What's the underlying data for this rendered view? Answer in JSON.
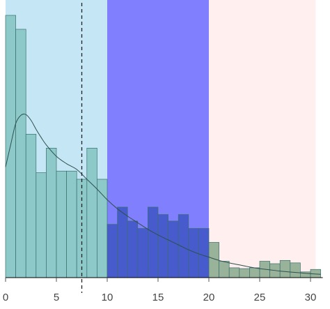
{
  "chart_data": {
    "type": "bar",
    "title": "",
    "xlabel": "",
    "ylabel": "",
    "xlim": [
      0,
      31
    ],
    "ylim": [
      0,
      32
    ],
    "bin_width": 1,
    "x": [
      0.5,
      1.5,
      2.5,
      3.5,
      4.5,
      5.5,
      6.5,
      7.5,
      8.5,
      9.5,
      10.5,
      11.5,
      12.5,
      13.5,
      14.5,
      15.5,
      16.5,
      17.5,
      18.5,
      19.5,
      20.5,
      21.5,
      22.5,
      23.5,
      24.5,
      25.5,
      26.5,
      27.5,
      28.5,
      29.5,
      30.5
    ],
    "values": [
      32.0,
      30.3,
      17.5,
      12.8,
      15.8,
      13.0,
      13.0,
      12.0,
      15.8,
      12.0,
      6.5,
      8.6,
      6.9,
      6.0,
      8.6,
      7.7,
      6.9,
      7.7,
      6.0,
      6.0,
      4.3,
      2.0,
      1.2,
      1.1,
      1.2,
      2.0,
      1.7,
      2.1,
      1.8,
      0.7,
      1.0
    ],
    "x_ticks": [
      "0",
      "5",
      "10",
      "15",
      "20",
      "25",
      "30"
    ],
    "x_tick_values": [
      0,
      5,
      10,
      15,
      20,
      25,
      30
    ],
    "regions": [
      {
        "from": 0,
        "to": 10,
        "color": "#c5e6f5",
        "bar_color": "#88c7c3"
      },
      {
        "from": 10,
        "to": 20,
        "color": "#8080ff",
        "bar_color": "#4258c8"
      },
      {
        "from": 20,
        "to": 30.5,
        "color": "#fff0ef",
        "bar_color": "#8fae92"
      }
    ],
    "density_curve": {
      "x": [
        0,
        0.5,
        1,
        1.5,
        2,
        2.5,
        3,
        3.5,
        4,
        5,
        6,
        7,
        8,
        9,
        10,
        11,
        12,
        13,
        14,
        15,
        16,
        17,
        18,
        19,
        20,
        21,
        22,
        23,
        24,
        25,
        26,
        27,
        28,
        29,
        30,
        31
      ],
      "y": [
        13.5,
        16.2,
        18.8,
        19.8,
        19.9,
        19.2,
        18.1,
        17.1,
        16.2,
        14.8,
        13.9,
        13.2,
        12.0,
        10.8,
        9.5,
        8.4,
        7.5,
        6.7,
        5.9,
        5.2,
        4.6,
        4.0,
        3.4,
        2.9,
        2.5,
        2.1,
        1.8,
        1.55,
        1.3,
        1.1,
        0.95,
        0.8,
        0.68,
        0.58,
        0.48,
        0.4
      ]
    },
    "vline": {
      "x": 7.5,
      "style": "dashed"
    },
    "grid": false,
    "legend": "none"
  }
}
